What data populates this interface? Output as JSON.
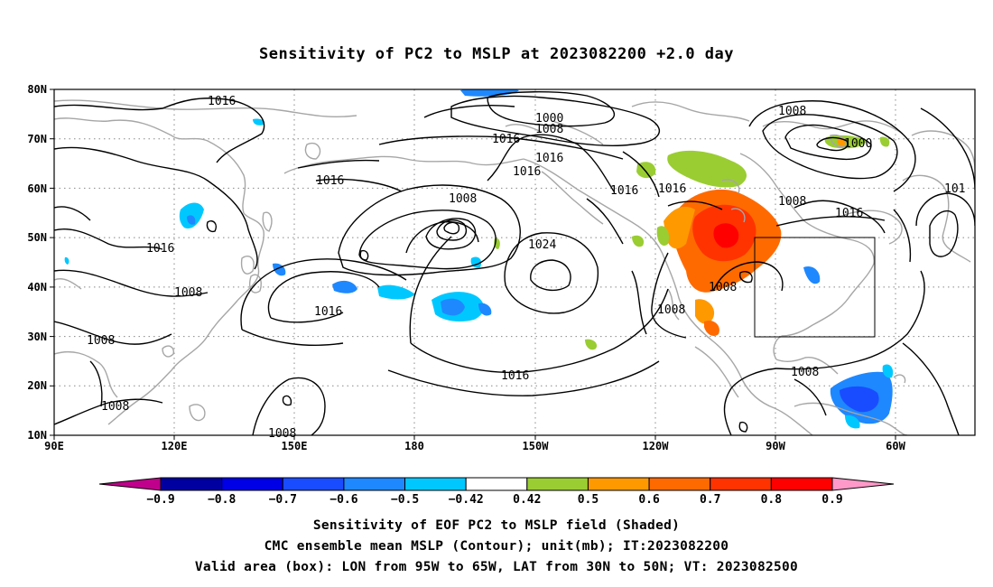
{
  "title": "Sensitivity of PC2 to MSLP at 2023082200 +2.0 day",
  "captions": [
    "Sensitivity of EOF PC2 to MSLP field (Shaded)",
    "CMC ensemble mean MSLP (Contour); unit(mb); IT:2023082200",
    "Valid area (box): LON from 95W to 65W, LAT from 30N to 50N; VT: 2023082500"
  ],
  "axes": {
    "lat_labels": [
      "80N",
      "70N",
      "60N",
      "50N",
      "40N",
      "30N",
      "20N",
      "10N"
    ],
    "lon_labels": [
      "90E",
      "120E",
      "150E",
      "180",
      "150W",
      "120W",
      "90W",
      "60W"
    ]
  },
  "colorbar": {
    "labels": [
      "-0.9",
      "-0.8",
      "-0.7",
      "-0.6",
      "-0.5",
      "-0.42",
      "0.42",
      "0.5",
      "0.6",
      "0.7",
      "0.8",
      "0.9"
    ],
    "colors": [
      "#c0008c",
      "#0000a0",
      "#0000e6",
      "#1a4cff",
      "#1e88ff",
      "#00c8ff",
      "#ffffff",
      "#9acd32",
      "#ff9900",
      "#ff6a00",
      "#ff3300",
      "#ff0000",
      "#ff99c8"
    ]
  },
  "contour_labels": [
    {
      "text": "1016"
    },
    {
      "text": "1000"
    },
    {
      "text": "1008"
    },
    {
      "text": "1016"
    },
    {
      "text": "1016"
    },
    {
      "text": "1016"
    },
    {
      "text": "1008"
    },
    {
      "text": "1000"
    },
    {
      "text": "1016"
    },
    {
      "text": "1016"
    },
    {
      "text": "1008"
    },
    {
      "text": "1016"
    },
    {
      "text": "1016"
    },
    {
      "text": "101"
    },
    {
      "text": "1008"
    },
    {
      "text": "1024"
    },
    {
      "text": "1016"
    },
    {
      "text": "1008"
    },
    {
      "text": "1008"
    },
    {
      "text": "1016"
    },
    {
      "text": "1008"
    },
    {
      "text": "1008"
    },
    {
      "text": "1008"
    },
    {
      "text": "1016"
    },
    {
      "text": "1008"
    },
    {
      "text": "1008"
    }
  ]
}
